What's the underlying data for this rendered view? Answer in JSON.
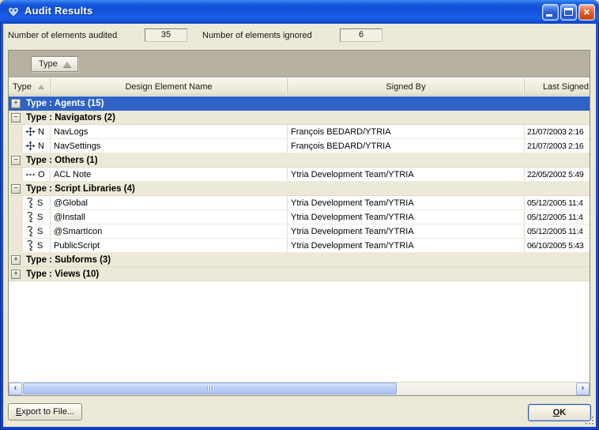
{
  "palette": {
    "titlebar_blue": "#1557dd",
    "window_border_blue": "#1544c8",
    "client_beige": "#ece9d8",
    "groupband_gray": "#b6b1a3",
    "selection_blue": "#2e62c4",
    "close_button_red": "#dd5628"
  },
  "window": {
    "title": "Audit Results"
  },
  "summary": {
    "audited_label": "Number of elements audited",
    "audited_value": "35",
    "ignored_label": "Number of elements ignored",
    "ignored_value": "6"
  },
  "grouping": {
    "chip_label": "Type",
    "sort_direction": "ascending"
  },
  "table": {
    "columns": [
      "Type",
      "Design Element Name",
      "Signed By",
      "Last Signed"
    ],
    "rows": [
      {
        "kind": "group",
        "label": "Type : Agents (15)",
        "expanded": false,
        "selected": true
      },
      {
        "kind": "group",
        "label": "Type : Navigators (2)",
        "expanded": true,
        "selected": false
      },
      {
        "kind": "item",
        "icon": "navigator",
        "letter": "N",
        "name": "NavLogs",
        "signed_by": "François BEDARD/YTRIA",
        "last_signed": "21/07/2003 2:16"
      },
      {
        "kind": "item",
        "icon": "navigator",
        "letter": "N",
        "name": "NavSettings",
        "signed_by": "François BEDARD/YTRIA",
        "last_signed": "21/07/2003 2:16"
      },
      {
        "kind": "group",
        "label": "Type : Others (1)",
        "expanded": true,
        "selected": false
      },
      {
        "kind": "item",
        "icon": "ellipsis",
        "letter": "O",
        "name": "ACL Note",
        "signed_by": "Ytria Development Team/YTRIA",
        "last_signed": "22/05/2002 5:49"
      },
      {
        "kind": "group",
        "label": "Type : Script Libraries (4)",
        "expanded": true,
        "selected": false
      },
      {
        "kind": "item",
        "icon": "script",
        "letter": "S",
        "name": "@Global",
        "signed_by": "Ytria Development Team/YTRIA",
        "last_signed": "05/12/2005 11:4"
      },
      {
        "kind": "item",
        "icon": "script",
        "letter": "S",
        "name": "@Install",
        "signed_by": "Ytria Development Team/YTRIA",
        "last_signed": "05/12/2005 11:4"
      },
      {
        "kind": "item",
        "icon": "script",
        "letter": "S",
        "name": "@SmartIcon",
        "signed_by": "Ytria Development Team/YTRIA",
        "last_signed": "05/12/2005 11:4"
      },
      {
        "kind": "item",
        "icon": "script",
        "letter": "S",
        "name": "PublicScript",
        "signed_by": "Ytria Development Team/YTRIA",
        "last_signed": "06/10/2005 5:43"
      },
      {
        "kind": "group",
        "label": "Type : Subforms (3)",
        "expanded": false,
        "selected": false
      },
      {
        "kind": "group",
        "label": "Type : Views (10)",
        "expanded": false,
        "selected": false
      }
    ]
  },
  "footer": {
    "export_label": "Export to File...",
    "ok_label": "OK"
  }
}
